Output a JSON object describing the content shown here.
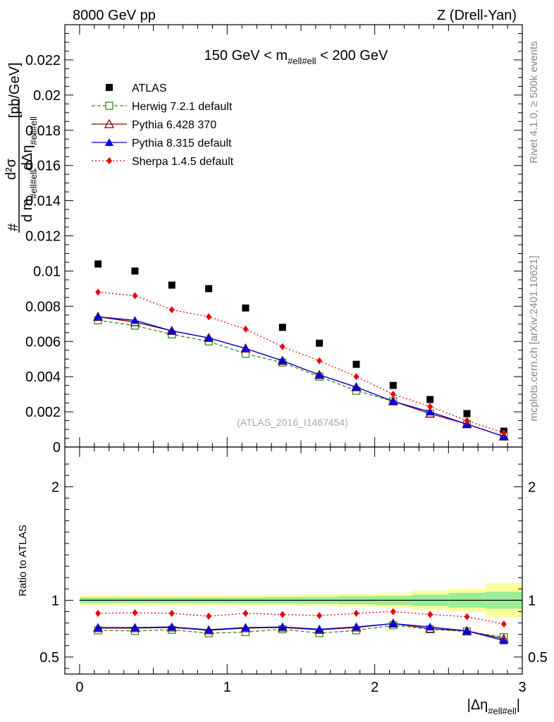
{
  "header": {
    "left": "8000 GeV pp",
    "right": "Z (Drell-Yan)"
  },
  "side_labels": {
    "rivet": "Rivet 4.1.0, ≥ 500k events",
    "mcplots": "mcplots.cern.ch [arXiv:2401.10621]"
  },
  "chart_data": {
    "type": "scatter",
    "title": "150 GeV < m_{#ell#ell} < 200 GeV",
    "title_parts": {
      "pre": "150 GeV < m",
      "sub": "#ell#ell",
      "post": " < 200 GeV"
    },
    "watermark": "(ATLAS_2016_I1467454)",
    "ylabel_main": {
      "hash": "#",
      "d2sigma": "d²σ",
      "den_dm": "d m",
      "den_dm_sub": "#ell#ell",
      "den_deta": "dΔη",
      "den_deta_sub": "#ell#ell",
      "unit": "[pb/GeV]"
    },
    "ylabel_ratio": "Ratio to ATLAS",
    "xlabel": {
      "main": "|Δη",
      "sub": "#ell#ell",
      "end": "|"
    },
    "xlim": [
      -0.1,
      3.0
    ],
    "ylim_main": [
      0,
      0.024
    ],
    "ylim_ratio": [
      0.35,
      2.35
    ],
    "xticks": [
      {
        "v": 0,
        "label": "0"
      },
      {
        "v": 1,
        "label": "1"
      },
      {
        "v": 2,
        "label": "2"
      },
      {
        "v": 3,
        "label": "3"
      }
    ],
    "yticks_main": [
      {
        "v": 0,
        "label": "0"
      },
      {
        "v": 0.002,
        "label": "0.002"
      },
      {
        "v": 0.004,
        "label": "0.004"
      },
      {
        "v": 0.006,
        "label": "0.006"
      },
      {
        "v": 0.008,
        "label": "0.008"
      },
      {
        "v": 0.01,
        "label": "0.01"
      },
      {
        "v": 0.012,
        "label": "0.012"
      },
      {
        "v": 0.014,
        "label": "0.014"
      },
      {
        "v": 0.016,
        "label": "0.016"
      },
      {
        "v": 0.018,
        "label": "0.018"
      },
      {
        "v": 0.02,
        "label": "0.02"
      },
      {
        "v": 0.022,
        "label": "0.022"
      }
    ],
    "yticks_ratio": [
      {
        "v": 0.5,
        "label": "0.5"
      },
      {
        "v": 1,
        "label": "1"
      },
      {
        "v": 2,
        "label": "2"
      }
    ],
    "x": [
      0.125,
      0.375,
      0.625,
      0.875,
      1.125,
      1.375,
      1.625,
      1.875,
      2.125,
      2.375,
      2.625,
      2.875
    ],
    "bin_edges": [
      0,
      0.25,
      0.5,
      0.75,
      1.0,
      1.25,
      1.5,
      1.75,
      2.0,
      2.25,
      2.5,
      2.75,
      3.0
    ],
    "band_inner": [
      0.025,
      0.025,
      0.025,
      0.025,
      0.026,
      0.028,
      0.03,
      0.035,
      0.04,
      0.05,
      0.065,
      0.075
    ],
    "band_outer": [
      0.04,
      0.04,
      0.04,
      0.04,
      0.042,
      0.045,
      0.05,
      0.055,
      0.065,
      0.085,
      0.1,
      0.15
    ],
    "series": [
      {
        "name": "ATLAS",
        "marker": "square",
        "color": "#000000",
        "linestyle": "none",
        "values": [
          0.0104,
          0.01,
          0.0092,
          0.009,
          0.0079,
          0.0068,
          0.0059,
          0.0047,
          0.0035,
          0.0027,
          0.0019,
          0.0009
        ]
      },
      {
        "name": "Herwig 7.2.1 default",
        "marker": "open-square",
        "color": "#3a8a1c",
        "linestyle": "dashed",
        "values": [
          0.0072,
          0.0069,
          0.0064,
          0.006,
          0.0053,
          0.0048,
          0.004,
          0.0032,
          0.0026,
          0.0019,
          0.0013,
          0.0006
        ],
        "ratio": [
          0.735,
          0.73,
          0.74,
          0.71,
          0.72,
          0.745,
          0.71,
          0.735,
          0.78,
          0.745,
          0.725,
          0.675
        ]
      },
      {
        "name": "Pythia 6.428 370",
        "marker": "open-triangle",
        "color": "#8b0000",
        "linestyle": "solid",
        "values": [
          0.0074,
          0.0071,
          0.0066,
          0.0062,
          0.0056,
          0.0049,
          0.0041,
          0.0034,
          0.0026,
          0.0019,
          0.0013,
          0.0006
        ],
        "ratio": [
          0.755,
          0.755,
          0.76,
          0.735,
          0.755,
          0.76,
          0.74,
          0.76,
          0.795,
          0.75,
          0.73,
          0.66
        ]
      },
      {
        "name": "Pythia 8.315 default",
        "marker": "triangle",
        "color": "#0000dd",
        "linestyle": "solid",
        "values": [
          0.0074,
          0.0072,
          0.0066,
          0.0062,
          0.0056,
          0.0049,
          0.0041,
          0.0034,
          0.0026,
          0.002,
          0.0013,
          0.0006
        ],
        "ratio": [
          0.76,
          0.76,
          0.765,
          0.74,
          0.76,
          0.765,
          0.745,
          0.765,
          0.795,
          0.765,
          0.73,
          0.645
        ]
      },
      {
        "name": "Sherpa 1.4.5 default",
        "marker": "diamond",
        "color": "#ee0000",
        "linestyle": "dotted",
        "values": [
          0.0088,
          0.0086,
          0.0078,
          0.0074,
          0.0067,
          0.0057,
          0.0049,
          0.004,
          0.003,
          0.0023,
          0.0015,
          0.0008
        ],
        "ratio": [
          0.885,
          0.89,
          0.885,
          0.86,
          0.885,
          0.875,
          0.865,
          0.885,
          0.9,
          0.875,
          0.855,
          0.79
        ]
      }
    ]
  }
}
